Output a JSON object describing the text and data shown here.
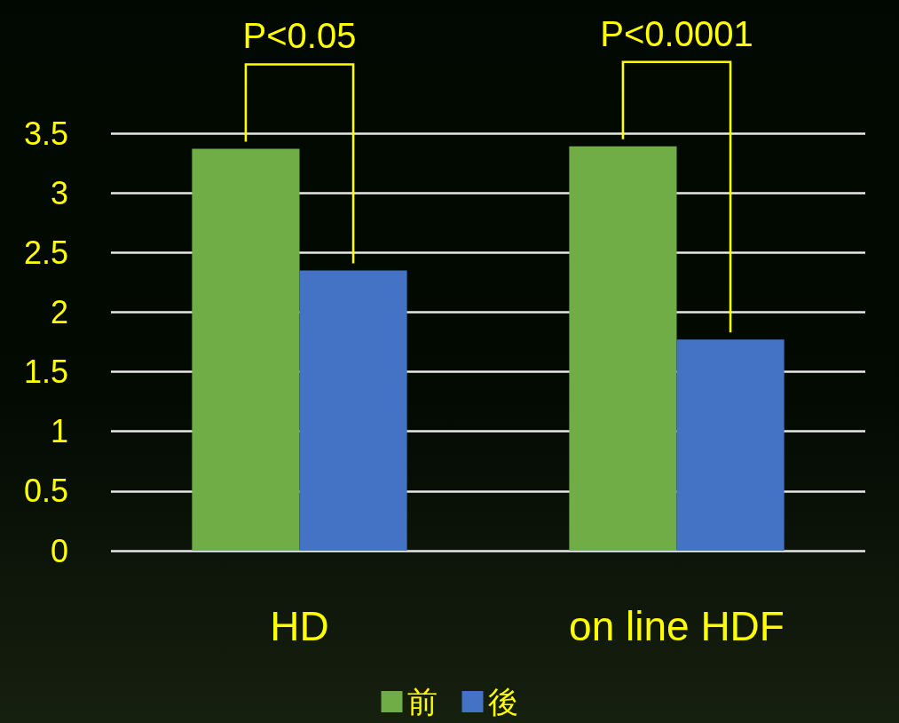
{
  "chart_data": {
    "type": "bar",
    "categories": [
      "HD",
      "on line HDF"
    ],
    "series": [
      {
        "name": "前",
        "color": "#70ad47",
        "values": [
          3.37,
          3.39
        ]
      },
      {
        "name": "後",
        "color": "#4472c4",
        "values": [
          2.35,
          1.77
        ]
      }
    ],
    "ylim": [
      0,
      3.5
    ],
    "yticks": [
      0,
      0.5,
      1,
      1.5,
      2,
      2.5,
      3,
      3.5
    ],
    "grid": "y",
    "legend": "bottom",
    "annotations": [
      "P<0.05",
      "P<0.0001"
    ]
  }
}
